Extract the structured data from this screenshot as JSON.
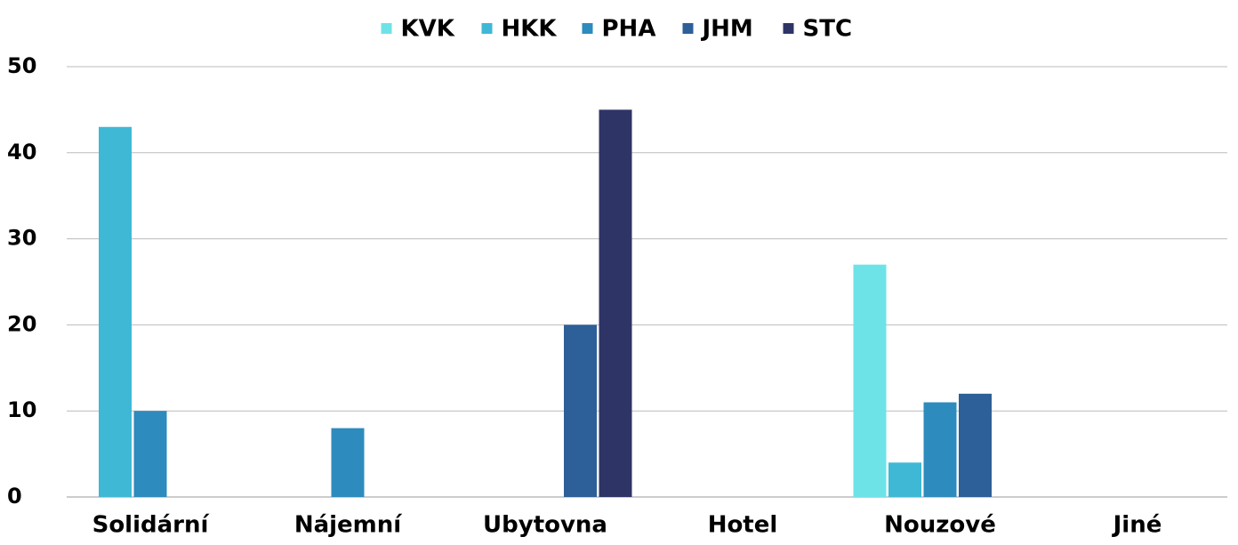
{
  "chart_data": {
    "type": "bar",
    "categories": [
      "Solidární",
      "Nájemní",
      "Ubytovna",
      "Hotel",
      "Nouzové",
      "Jiné"
    ],
    "series": [
      {
        "name": "KVK",
        "color": "#6de3e8",
        "values": [
          0,
          0,
          0,
          0,
          27,
          0
        ]
      },
      {
        "name": "HKK",
        "color": "#3fb8d6",
        "values": [
          43,
          0,
          0,
          0,
          4,
          0
        ]
      },
      {
        "name": "PHA",
        "color": "#2e8bbd",
        "values": [
          10,
          8,
          0,
          0,
          11,
          0
        ]
      },
      {
        "name": "JHM",
        "color": "#2d5f98",
        "values": [
          0,
          0,
          20,
          0,
          12,
          0
        ]
      },
      {
        "name": "STC",
        "color": "#2e3466",
        "values": [
          0,
          0,
          45,
          0,
          0,
          0
        ]
      }
    ],
    "ylim": [
      0,
      50
    ],
    "yticks": [
      0,
      10,
      20,
      30,
      40,
      50
    ],
    "grid": true,
    "legend": "top"
  }
}
